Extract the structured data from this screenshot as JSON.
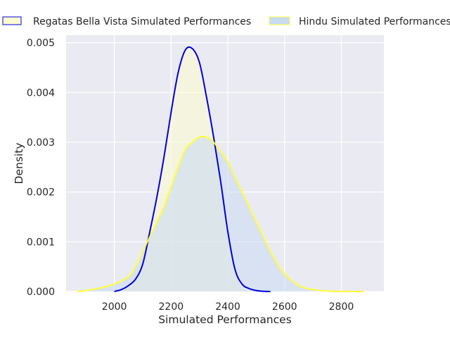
{
  "chart_data": {
    "type": "area",
    "title": "",
    "xlabel": "Simulated Performances",
    "ylabel": "Density",
    "xlim": [
      1830,
      2950
    ],
    "ylim": [
      0,
      0.00515
    ],
    "x_ticks": [
      2000,
      2200,
      2400,
      2600,
      2800
    ],
    "x_tick_labels": [
      "2000",
      "2200",
      "2400",
      "2600",
      "2800"
    ],
    "y_ticks": [
      0,
      0.001,
      0.002,
      0.003,
      0.004,
      0.005
    ],
    "y_tick_labels": [
      "0.000",
      "0.001",
      "0.002",
      "0.003",
      "0.004",
      "0.005"
    ],
    "grid": true,
    "legend_position": "top, outside plot, two columns",
    "background": "#eaeaf2",
    "series": [
      {
        "name": "Regatas Bella Vista Simulated Performances",
        "line_color": "#0000dd",
        "fill_color": "#fbfbd0",
        "x": [
          2000,
          2025,
          2050,
          2075,
          2100,
          2125,
          2150,
          2175,
          2200,
          2225,
          2250,
          2275,
          2300,
          2325,
          2350,
          2375,
          2400,
          2425,
          2450,
          2475,
          2500,
          2525,
          2550
        ],
        "y": [
          0.0,
          4e-05,
          0.00012,
          0.00025,
          0.00055,
          0.0012,
          0.0019,
          0.0027,
          0.0036,
          0.0044,
          0.00485,
          0.00488,
          0.0046,
          0.0039,
          0.0031,
          0.0022,
          0.0012,
          0.00045,
          0.00015,
          6e-05,
          2e-05,
          5e-06,
          0.0
        ]
      },
      {
        "name": "Hindu Simulated Performances",
        "line_color": "#ffff33",
        "fill_color": "#c9daf3",
        "x": [
          1870,
          1900,
          1950,
          2000,
          2050,
          2075,
          2100,
          2125,
          2150,
          2175,
          2200,
          2225,
          2250,
          2275,
          2300,
          2325,
          2350,
          2375,
          2400,
          2425,
          2450,
          2475,
          2500,
          2525,
          2550,
          2575,
          2600,
          2650,
          2700,
          2750,
          2800,
          2850,
          2880
        ],
        "y": [
          0.0,
          2e-05,
          7e-05,
          0.00015,
          0.0003,
          0.0005,
          0.0008,
          0.0011,
          0.0014,
          0.0017,
          0.0021,
          0.0025,
          0.00285,
          0.003,
          0.0031,
          0.0031,
          0.003,
          0.0028,
          0.0026,
          0.0023,
          0.002,
          0.0017,
          0.0014,
          0.0011,
          0.0008,
          0.00055,
          0.00035,
          0.00012,
          4e-05,
          1e-05,
          3e-06,
          1e-06,
          0.0
        ]
      }
    ]
  }
}
